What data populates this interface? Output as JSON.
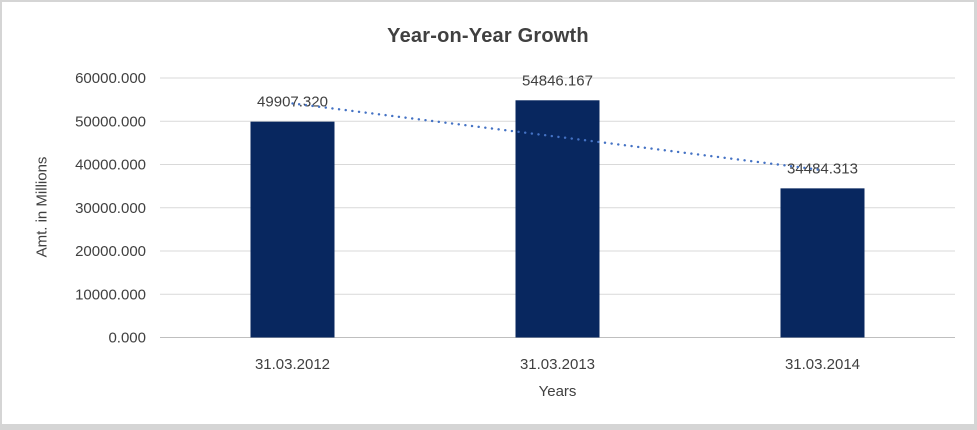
{
  "chart_data": {
    "type": "bar",
    "title": "Year-on-Year Growth",
    "categories": [
      "31.03.2012",
      "31.03.2013",
      "31.03.2014"
    ],
    "values": [
      49907.32,
      54846.167,
      34484.313
    ],
    "data_labels": [
      "49907.320",
      "54846.167",
      "34484.313"
    ],
    "xlabel": "Years",
    "ylabel": "Amt. in Millions",
    "ylim": [
      0,
      60000
    ],
    "yticks": [
      0,
      10000,
      20000,
      30000,
      40000,
      50000,
      60000
    ],
    "ytick_labels": [
      "0.000",
      "10000.000",
      "20000.000",
      "30000.000",
      "40000.000",
      "50000.000",
      "60000.000"
    ],
    "grid": true,
    "legend_position": "none",
    "trendline": {
      "type": "linear",
      "style": "dotted"
    },
    "colors": {
      "bar": "#08275f",
      "trendline": "#4472c4",
      "gridline": "#d9d9d9",
      "axis_line": "#bfbfbf",
      "text": "#404040",
      "title": "#404040",
      "background": "#ffffff",
      "border": "#d5d5d5"
    }
  }
}
